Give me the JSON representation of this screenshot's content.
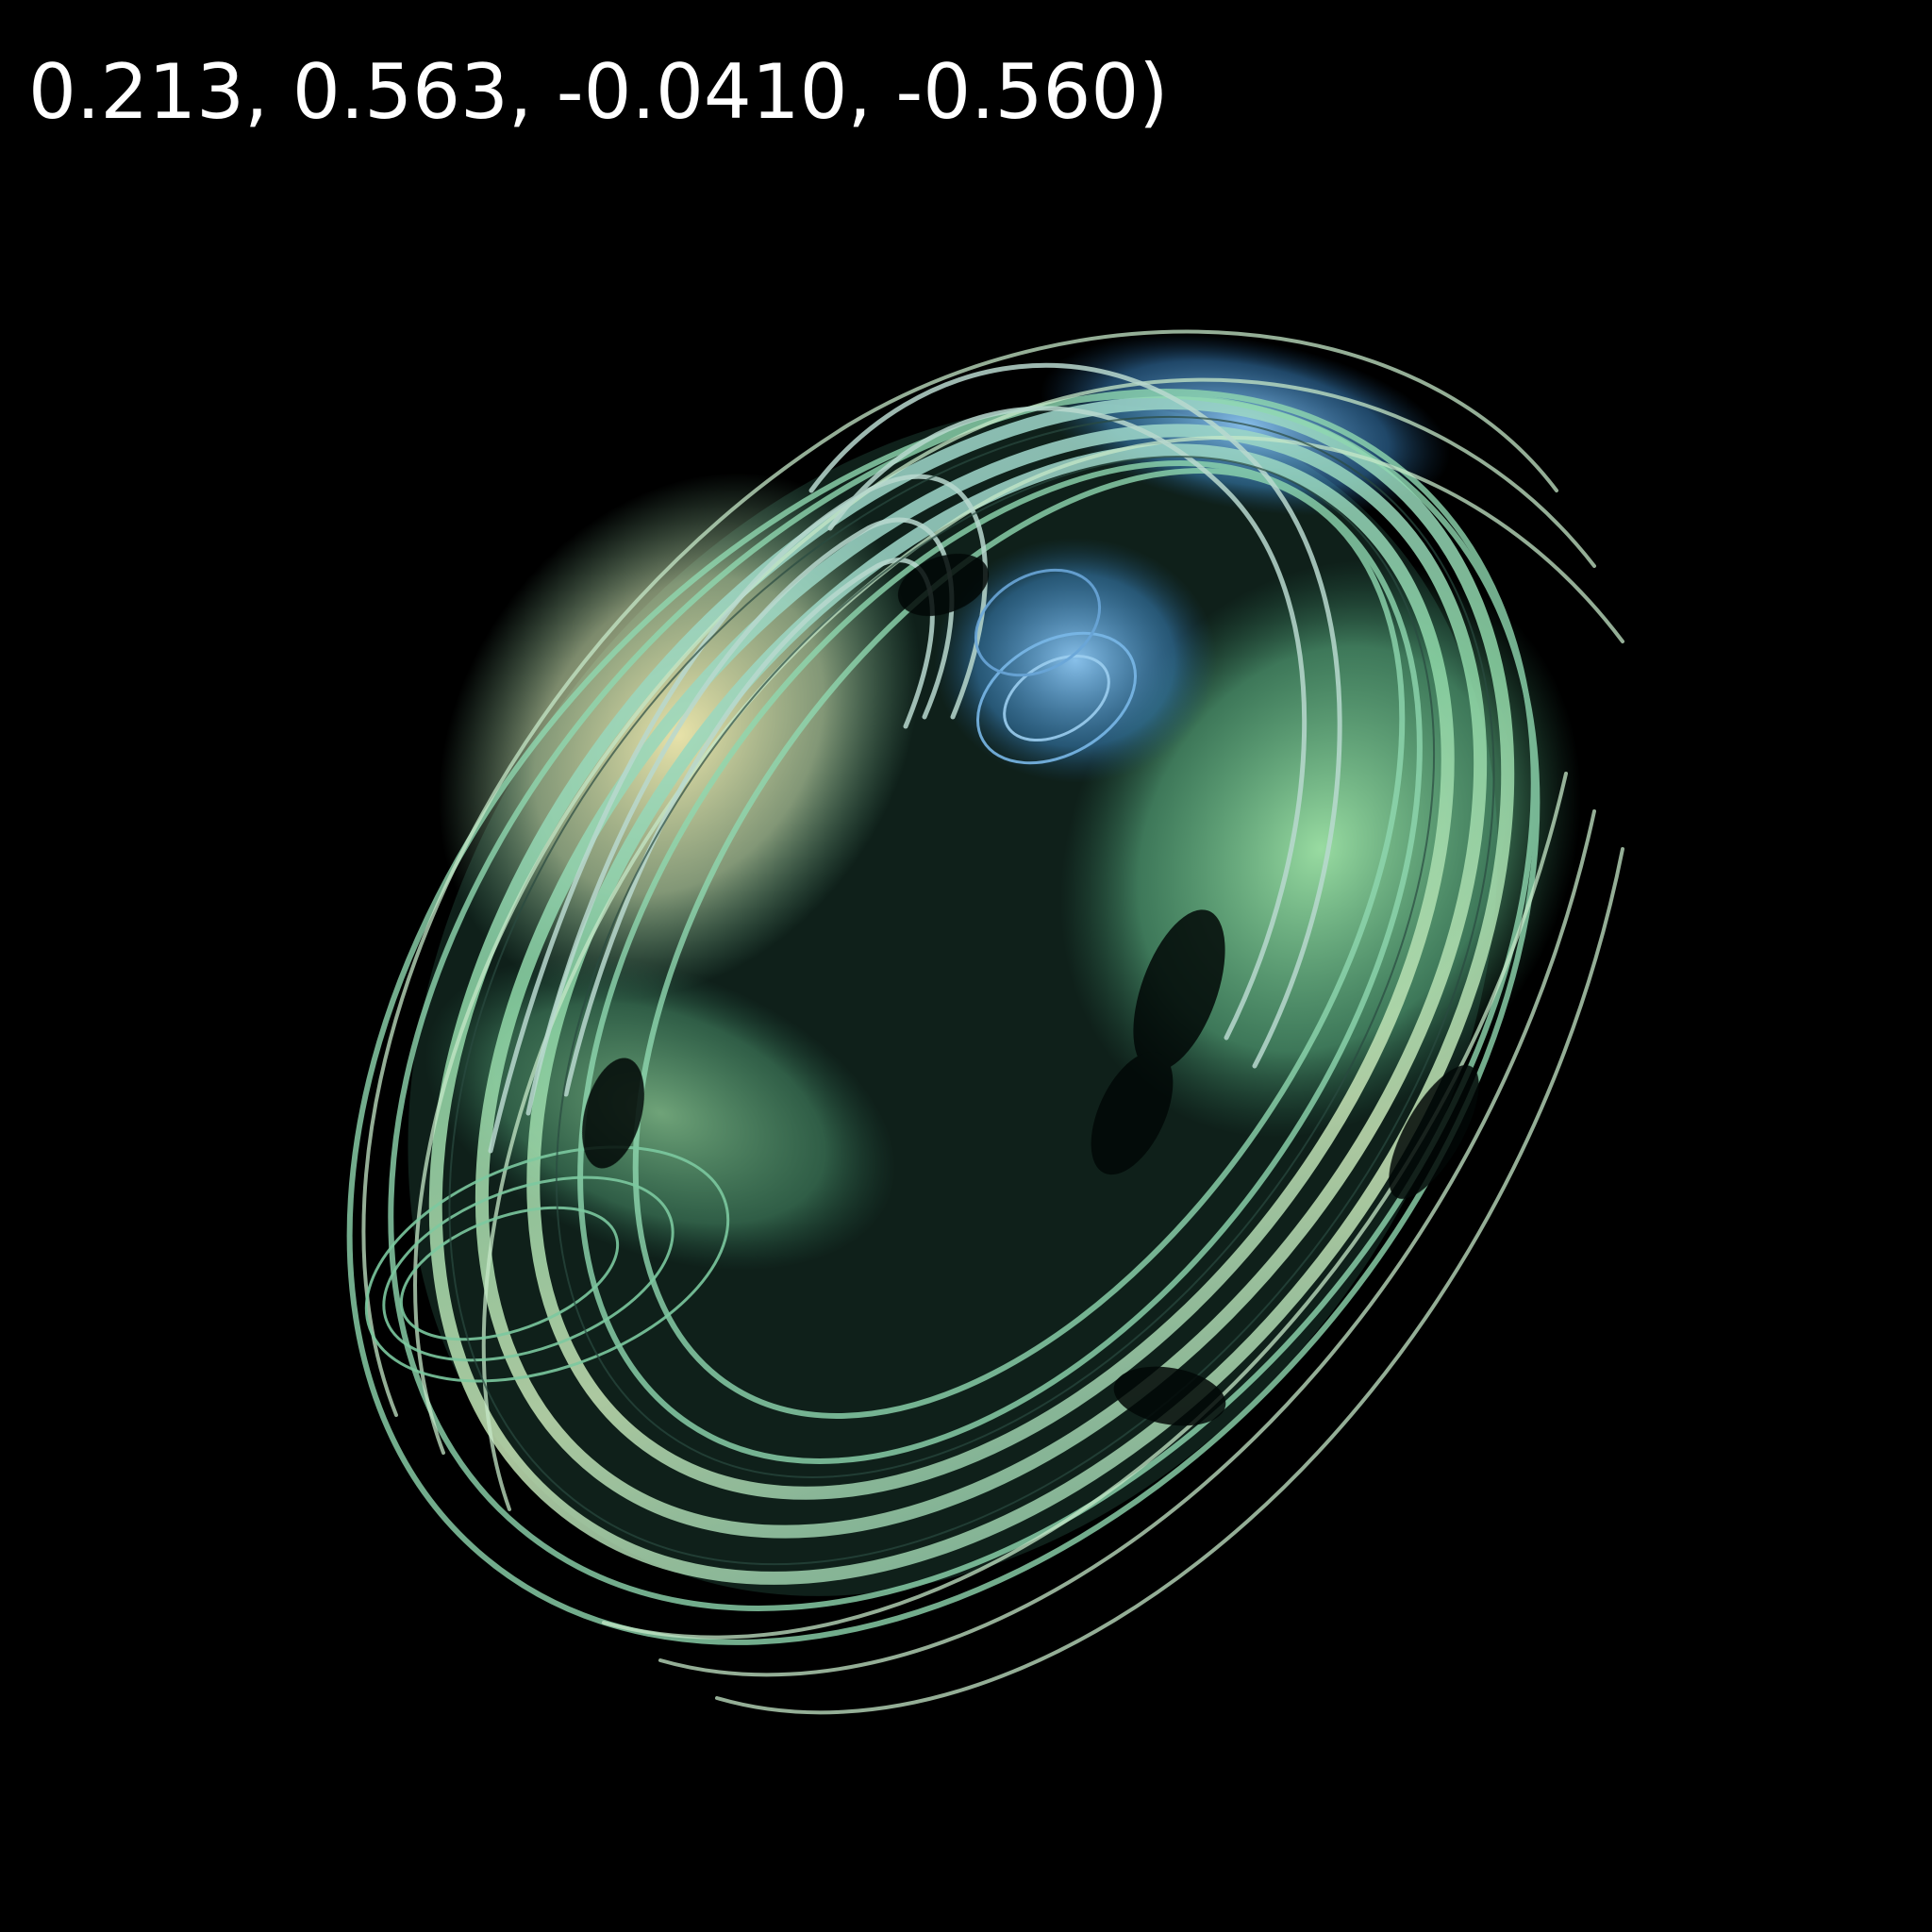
{
  "caption": "0.213, 0.563, -0.0410, -0.560)",
  "image": {
    "subject": "fractal-attractor",
    "background_color": "#000000",
    "palette": {
      "green": "#7fd89a",
      "teal": "#6fb8a4",
      "mint": "#c9e8c4",
      "yellow": "#e8df9a",
      "blue": "#4a9ad8",
      "pink": "#c8a8a8",
      "dark": "#0a1a14"
    }
  }
}
